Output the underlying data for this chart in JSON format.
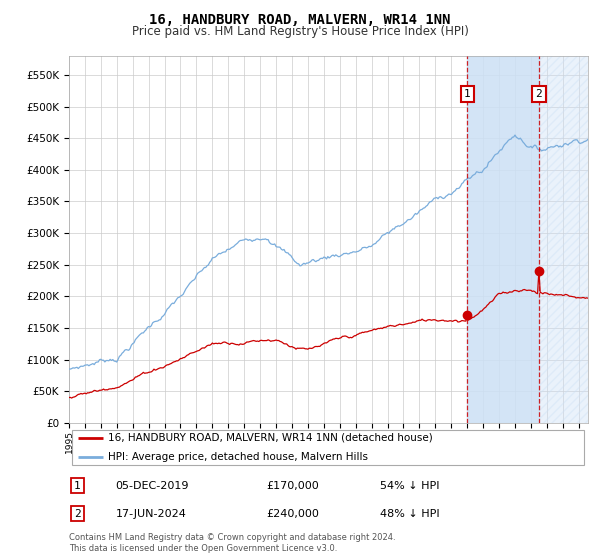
{
  "title": "16, HANDBURY ROAD, MALVERN, WR14 1NN",
  "subtitle": "Price paid vs. HM Land Registry's House Price Index (HPI)",
  "title_fontsize": 10,
  "subtitle_fontsize": 8.5,
  "ylim": [
    0,
    580000
  ],
  "yticks": [
    0,
    50000,
    100000,
    150000,
    200000,
    250000,
    300000,
    350000,
    400000,
    450000,
    500000,
    550000
  ],
  "ytick_labels": [
    "£0",
    "£50K",
    "£100K",
    "£150K",
    "£200K",
    "£250K",
    "£300K",
    "£350K",
    "£400K",
    "£450K",
    "£500K",
    "£550K"
  ],
  "hpi_color": "#7aaddc",
  "price_color": "#cc0000",
  "point1_date_idx": 300,
  "point1_value": 170000,
  "point1_label": "1",
  "point1_date_str": "05-DEC-2019",
  "point1_price_str": "£170,000",
  "point1_pct_str": "54% ↓ HPI",
  "point2_date_idx": 354,
  "point2_value": 240000,
  "point2_label": "2",
  "point2_date_str": "17-JUN-2024",
  "point2_price_str": "£240,000",
  "point2_pct_str": "48% ↓ HPI",
  "legend_label_red": "16, HANDBURY ROAD, MALVERN, WR14 1NN (detached house)",
  "legend_label_blue": "HPI: Average price, detached house, Malvern Hills",
  "footnote": "Contains HM Land Registry data © Crown copyright and database right 2024.\nThis data is licensed under the Open Government Licence v3.0.",
  "bg_color": "#ffffff",
  "grid_color": "#cccccc",
  "n_months": 392,
  "start_year": 1995,
  "end_year": 2027
}
